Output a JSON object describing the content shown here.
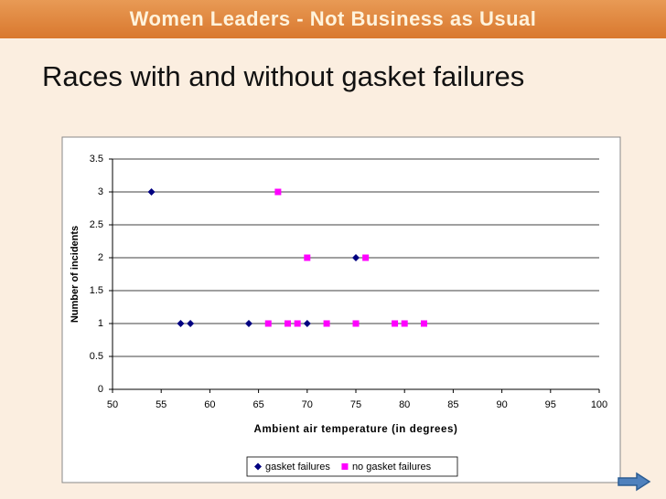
{
  "banner": "Women Leaders - Not Business as Usual",
  "slide_title": "Races with and without gasket failures",
  "chart_data": {
    "type": "scatter",
    "x_label": "Ambient air temperature (in degrees)",
    "y_label": "Number of incidents",
    "xlim": [
      50,
      100
    ],
    "xticks": [
      50,
      55,
      60,
      65,
      70,
      75,
      80,
      85,
      90,
      95,
      100
    ],
    "ylim": [
      0,
      3.5
    ],
    "yticks": [
      0,
      0.5,
      1,
      1.5,
      2,
      2.5,
      3,
      3.5
    ],
    "grid": true,
    "legend": "bottom",
    "series": [
      {
        "name": "gasket failures",
        "color": "#000080",
        "marker": "diamond",
        "x": [
          54,
          57,
          58,
          64,
          70,
          75
        ],
        "values": [
          3,
          1,
          1,
          1,
          1,
          2
        ]
      },
      {
        "name": "no gasket failures",
        "color": "#ff00ff",
        "marker": "square",
        "x": [
          67,
          70,
          76,
          66,
          68,
          69,
          72,
          75,
          79,
          80,
          82
        ],
        "values": [
          3,
          2,
          2,
          1,
          1,
          1,
          1,
          1,
          1,
          1,
          1
        ]
      }
    ]
  }
}
